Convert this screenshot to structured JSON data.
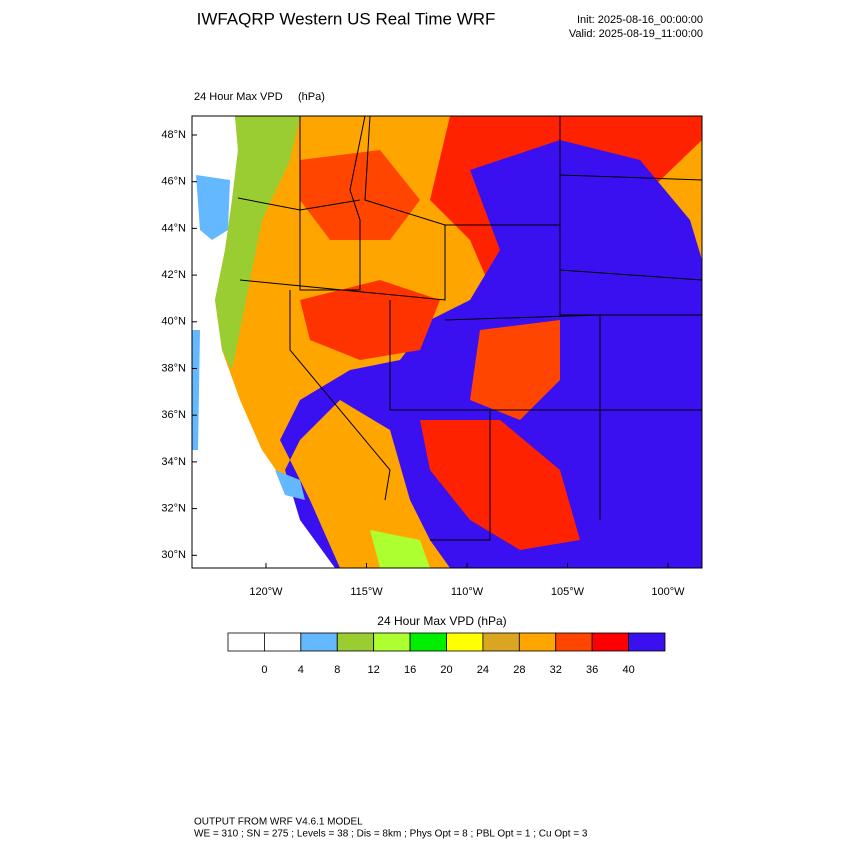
{
  "header": {
    "title": "IWFAQRP Western US Real Time WRF",
    "init": "Init: 2025-08-16_00:00:00",
    "valid": "Valid: 2025-08-19_11:00:00"
  },
  "map": {
    "field": "24 Hour Max VPD",
    "units": "(hPa)",
    "lat_labels": [
      "48°N",
      "46°N",
      "44°N",
      "42°N",
      "40°N",
      "38°N",
      "36°N",
      "34°N",
      "32°N",
      "30°N"
    ],
    "lon_labels": [
      "120°W",
      "115°W",
      "110°W",
      "105°W",
      "100°W"
    ]
  },
  "colorbar": {
    "title": "24 Hour Max VPD  (hPa)",
    "colors": [
      "#ffffff",
      "#ffffff",
      "#63b8ff",
      "#9acd32",
      "#adff2f",
      "#00ee00",
      "#ffff00",
      "#daa520",
      "#ffa500",
      "#ff4500",
      "#ff0000",
      "#3a10f0"
    ],
    "labels": [
      "0",
      "4",
      "8",
      "12",
      "16",
      "20",
      "24",
      "28",
      "32",
      "36",
      "40"
    ]
  },
  "footer": {
    "line1": "OUTPUT FROM WRF V4.6.1 MODEL",
    "line2": "WE = 310 ; SN = 275 ; Levels = 38 ; Dis = 8km ; Phys Opt = 8 ; PBL Opt = 1 ; Cu Opt = 3"
  }
}
